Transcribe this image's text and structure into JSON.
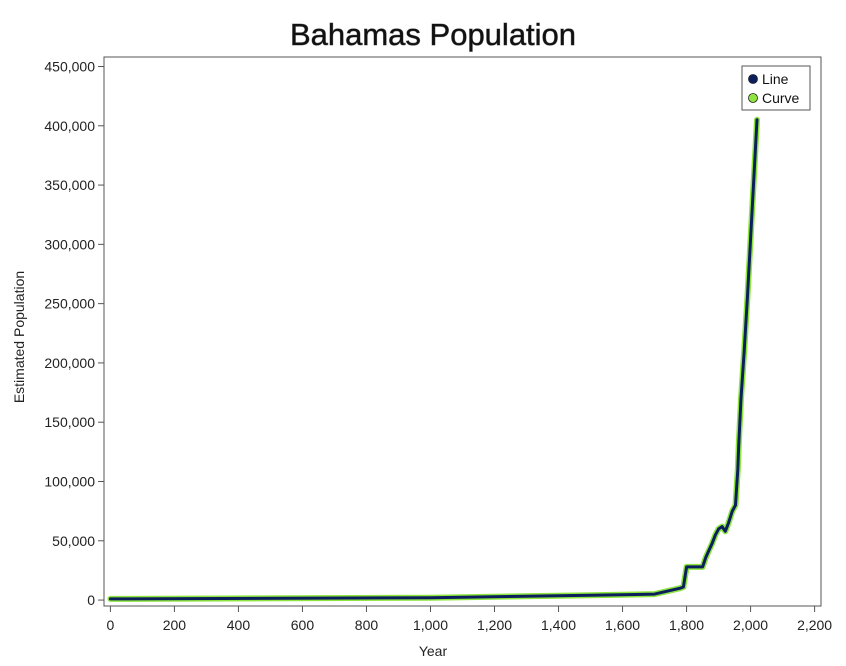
{
  "chart_data": {
    "type": "line",
    "title": "Bahamas Population",
    "xlabel": "Year",
    "ylabel": "Estimated Population",
    "xlim": [
      -20,
      2220
    ],
    "ylim": [
      -5000,
      458000
    ],
    "x_ticks": [
      "0",
      "200",
      "400",
      "600",
      "800",
      "1,000",
      "1,200",
      "1,400",
      "1,600",
      "1,800",
      "2,000",
      "2,200"
    ],
    "y_ticks": [
      "0",
      "50,000",
      "100,000",
      "150,000",
      "200,000",
      "250,000",
      "300,000",
      "350,000",
      "400,000",
      "450,000"
    ],
    "legend_position": "top-right",
    "grid": false,
    "series": [
      {
        "name": "Line",
        "color": "#0b1f5c",
        "x": [
          0,
          1000,
          1500,
          1700,
          1780,
          1790,
          1800,
          1810,
          1820,
          1850,
          1860,
          1870,
          1880,
          1890,
          1900,
          1911,
          1921,
          1931,
          1943,
          1953,
          1960,
          1963,
          1970,
          1980,
          1990,
          2000,
          2010,
          2020
        ],
        "y": [
          1000,
          2000,
          4000,
          5000,
          10000,
          11000,
          28000,
          28000,
          28000,
          28000,
          36000,
          42000,
          48000,
          55000,
          60000,
          62000,
          58000,
          65000,
          75000,
          80000,
          110000,
          130000,
          170000,
          210000,
          255000,
          305000,
          355000,
          405000
        ]
      },
      {
        "name": "Curve",
        "color": "#8ee53f",
        "x": [
          0,
          1000,
          1500,
          1700,
          1780,
          1790,
          1800,
          1810,
          1820,
          1850,
          1860,
          1870,
          1880,
          1890,
          1900,
          1911,
          1921,
          1931,
          1943,
          1953,
          1960,
          1963,
          1970,
          1980,
          1990,
          2000,
          2010,
          2020
        ],
        "y": [
          1000,
          2000,
          4000,
          5000,
          10000,
          11000,
          28000,
          28000,
          28000,
          28000,
          36000,
          42000,
          48000,
          55000,
          60000,
          62000,
          58000,
          65000,
          75000,
          80000,
          110000,
          130000,
          170000,
          210000,
          255000,
          305000,
          355000,
          405000
        ]
      }
    ]
  }
}
